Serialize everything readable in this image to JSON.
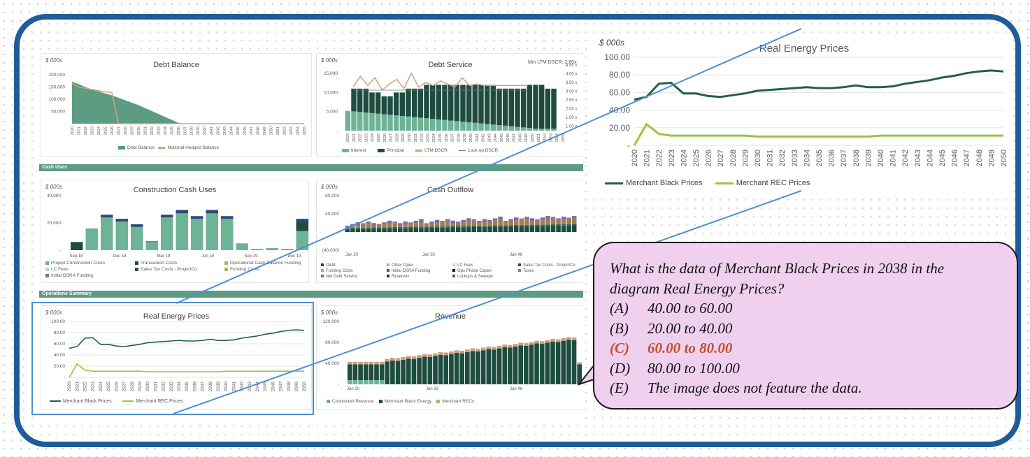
{
  "dashboard": {
    "sections": {
      "cash_uses": "Cash Uses",
      "operations": "Operations Summary"
    },
    "debt_balance": {
      "unit": "$ 000s",
      "title": "Debt Balance",
      "y_ticks": [
        "200,000",
        "150,000",
        "100,000",
        "50,000",
        "-"
      ],
      "x_ticks": [
        "2020",
        "2021",
        "2022",
        "2023",
        "2024",
        "2025",
        "2026",
        "2027",
        "2028",
        "2029",
        "2030",
        "2031",
        "2032",
        "2033",
        "2034",
        "2035",
        "2036",
        "2037",
        "2038",
        "2039",
        "2040",
        "2041",
        "2042",
        "2043",
        "2044",
        "2045",
        "2046",
        "2047",
        "2048",
        "2049",
        "2050",
        "2051",
        "2052",
        "2053",
        "2054",
        "2055"
      ],
      "legend": [
        "Debt Balance",
        "Notional Hedged Balance"
      ]
    },
    "debt_service": {
      "unit": "$ 000s",
      "title": "Debt Service",
      "note": "Min LTM DSCR: 2.80x",
      "y_ticks": [
        "15,000",
        "10,000",
        "5,000",
        "-"
      ],
      "y2_ticks": [
        "4.50 x",
        "4.00 x",
        "3.50 x",
        "3.00 x",
        "2.50 x",
        "2.00 x",
        "1.50 x",
        "1.00 x"
      ],
      "x_ticks": [
        "2020",
        "2021",
        "2022",
        "2023",
        "2024",
        "2025",
        "2026",
        "2027",
        "2028",
        "2029",
        "2030",
        "2031",
        "2032",
        "2033",
        "2034",
        "2035",
        "2036",
        "2037",
        "2038",
        "2039",
        "2040",
        "2041",
        "2042",
        "2043",
        "2044",
        "2045",
        "2046",
        "2047",
        "2048",
        "2049",
        "2050",
        "2051",
        "2052",
        "2053",
        "2054",
        "2055"
      ],
      "legend": [
        "Interest",
        "Principal",
        "LTM DSCR",
        "Lock up DSCR"
      ]
    },
    "construction": {
      "unit": "$ 000s",
      "title": "Construction Cash Uses",
      "y_ticks": [
        "40,000",
        "20,000",
        "-"
      ],
      "x_ticks": [
        "Sep 18",
        "Dec 18",
        "Mar 19",
        "Jun 19",
        "Sep 19",
        "Dec 19"
      ],
      "legend": [
        "Project Construction Costs",
        "Transaction Costs",
        "Operational Cash Balance Funding",
        "LC Fees",
        "Sales Tax Costs - ProjectCo",
        "Funding Costs",
        "Initial DSRA Funding"
      ]
    },
    "cash_outflow": {
      "unit": "$ 000s",
      "title": "Cash Outflow",
      "y_ticks": [
        "80,000",
        "40,000",
        "-",
        "(40,000)"
      ],
      "x_ticks": [
        "Jan 20",
        "Jan 33",
        "Jan 46"
      ],
      "legend": [
        "O&M",
        "Other Opex",
        "LC Fees",
        "Sales Tax Costs - ProjectCo",
        "Funding Costs",
        "Initial DSRA Funding",
        "Ops Phase Capex",
        "Taxes",
        "Net Debt Service",
        "Reserves",
        "Lockups & Sweeps"
      ]
    },
    "revenue": {
      "unit": "$ 000s",
      "title": "Revenue",
      "y_ticks": [
        "120,000",
        "80,000",
        "40,000",
        "-"
      ],
      "x_ticks": [
        "Jan 20",
        "Jan 33",
        "Jan 46"
      ],
      "legend": [
        "Contracted Revenue",
        "Merchant Black Energy",
        "Merchant RECs"
      ]
    }
  },
  "chart_data": {
    "type": "line",
    "title": "Real Energy Prices",
    "unit_label": "$ 000s",
    "y_ticks": [
      "100.00",
      "80.00",
      "60.00",
      "40.00",
      "20.00",
      "-"
    ],
    "ylim": [
      0,
      100
    ],
    "x": [
      "2020",
      "2021",
      "2022",
      "2023",
      "2024",
      "2025",
      "2026",
      "2027",
      "2028",
      "2029",
      "2030",
      "2031",
      "2032",
      "2033",
      "2034",
      "2035",
      "2036",
      "2037",
      "2038",
      "2039",
      "2040",
      "2041",
      "2042",
      "2043",
      "2044",
      "2045",
      "2046",
      "2047",
      "2048",
      "2049",
      "2050"
    ],
    "series": [
      {
        "name": "Merchant Black Prices",
        "color": "#255e4b",
        "values": [
          52,
          55,
          70,
          71,
          59,
          59,
          56,
          55,
          57,
          59,
          62,
          63,
          64,
          65,
          66,
          65,
          65,
          66,
          68,
          66,
          66,
          67,
          70,
          72,
          74,
          77,
          79,
          82,
          84,
          85,
          84
        ]
      },
      {
        "name": "Merchant REC Prices",
        "color": "#9bc53d",
        "values": [
          0,
          24,
          13,
          11,
          11,
          11,
          11,
          11,
          11,
          11,
          10,
          10,
          10,
          10,
          10,
          10,
          10,
          10,
          10,
          10,
          11,
          11,
          11,
          11,
          11,
          11,
          11,
          11,
          11,
          11,
          11
        ]
      }
    ],
    "grid": true,
    "legend_position": "bottom"
  },
  "question": {
    "text": "What is the data of Merchant Black Prices in 2038 in the diagram Real Energy Prices?",
    "line1": "What is the data of Merchant Black Prices in 2038 in the",
    "line2": "diagram Real Energy Prices?",
    "options": [
      {
        "key": "(A)",
        "text": "40.00 to 60.00"
      },
      {
        "key": "(B)",
        "text": "20.00 to 40.00"
      },
      {
        "key": "(C)",
        "text": "60.00 to 80.00",
        "correct": true
      },
      {
        "key": "(D)",
        "text": "80.00 to 100.00"
      },
      {
        "key": "(E)",
        "text": "The image does not feature the data."
      }
    ],
    "answer_color": "#c0502a"
  }
}
